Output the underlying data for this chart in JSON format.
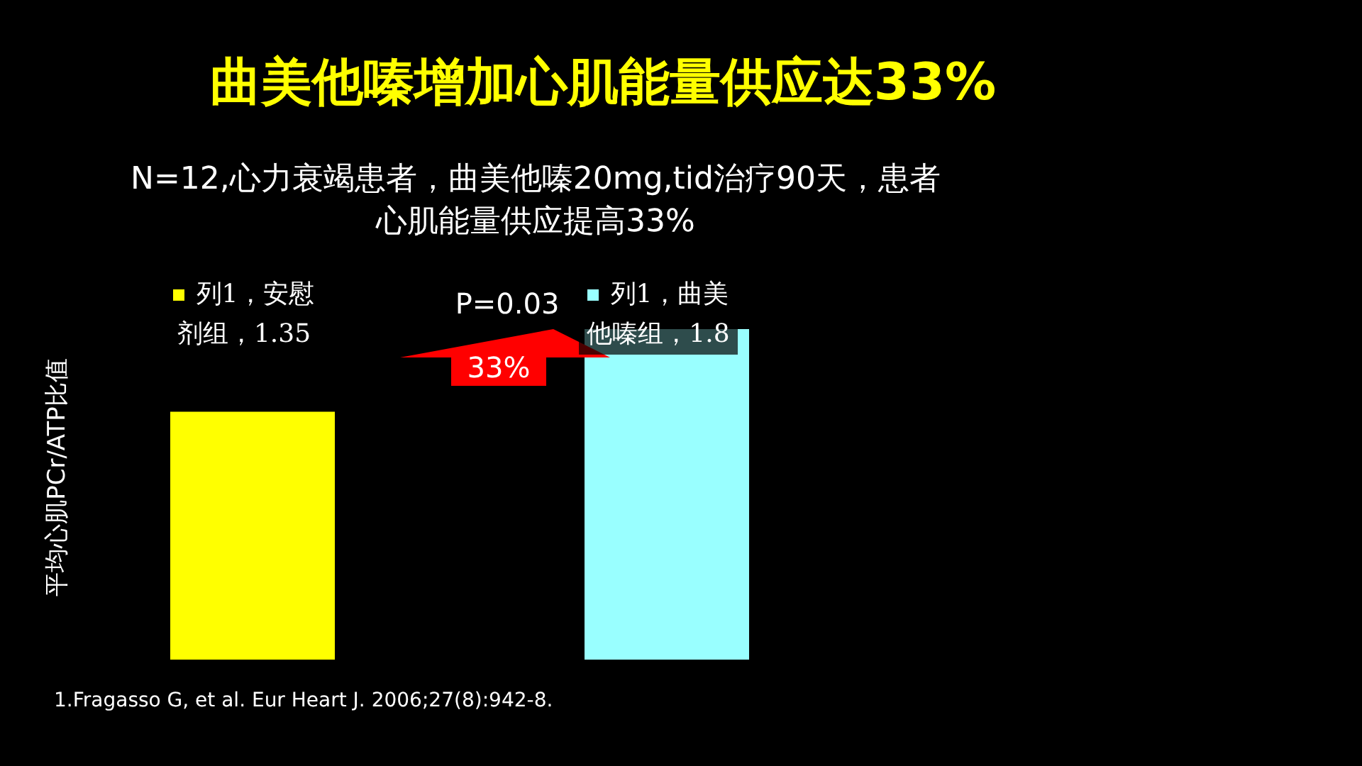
{
  "chart_data": {
    "type": "bar",
    "title": "曲美他嗪增加心肌能量供应达33%",
    "subtitle": "N=12,心力衰竭患者，曲美他嗪20mg,tid治疗90天，患者心肌能量供应提高33%",
    "ylabel": "平均心肌PCr/ATP比值",
    "categories": [
      null,
      null
    ],
    "values": [
      1.35,
      1.8
    ],
    "colors": [
      "#ffff00",
      "#99ffff"
    ],
    "value_labels": [
      "列1，安慰剂组，1.35",
      "列1，曲美他嗪组，1.8"
    ],
    "annotations": [
      "P=0.03",
      "33%",
      "1.Fragasso G, et al. Eur Heart J. 2006;27(8):942-8."
    ]
  }
}
